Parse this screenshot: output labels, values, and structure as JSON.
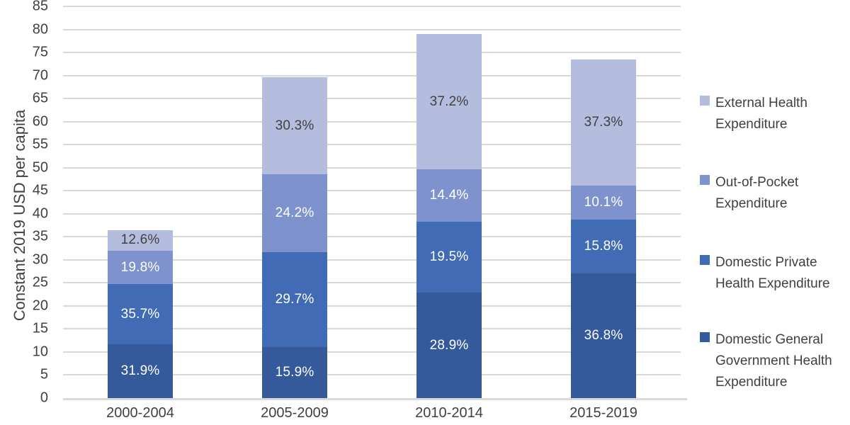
{
  "chart_data": {
    "type": "bar",
    "stacked": true,
    "title": "",
    "ylabel": "Constant 2019 USD per capita",
    "xlabel": "",
    "ylim": [
      0,
      85
    ],
    "ytick_step": 5,
    "grid": true,
    "legend_position": "right",
    "categories": [
      "2000-2004",
      "2005-2009",
      "2010-2014",
      "2015-2019"
    ],
    "totals": [
      36.5,
      69.5,
      79.0,
      73.5
    ],
    "series": [
      {
        "name": "Domestic General Government Health Expenditure",
        "color": "#345a9b",
        "label_color": "#ffffff",
        "values": [
          11.64,
          11.05,
          22.83,
          27.05
        ],
        "labels": [
          "31.9%",
          "15.9%",
          "28.9%",
          "36.8%"
        ]
      },
      {
        "name": "Domestic Private Health Expenditure",
        "color": "#416cb5",
        "label_color": "#ffffff",
        "values": [
          13.03,
          20.64,
          15.41,
          11.61
        ],
        "labels": [
          "35.7%",
          "29.7%",
          "19.5%",
          "15.8%"
        ]
      },
      {
        "name": "Out-of-Pocket Expenditure",
        "color": "#7e93ce",
        "label_color": "#ffffff",
        "values": [
          7.23,
          16.82,
          11.38,
          7.42
        ],
        "labels": [
          "19.8%",
          "24.2%",
          "14.4%",
          "10.1%"
        ]
      },
      {
        "name": "External Health Expenditure",
        "color": "#b4bddd",
        "label_color": "#404040",
        "values": [
          4.6,
          21.06,
          29.39,
          27.42
        ],
        "labels": [
          "12.6%",
          "30.3%",
          "37.2%",
          "37.3%"
        ]
      }
    ],
    "legend_labels_top_to_bottom": [
      "External Health Expenditure",
      "Out-of-Pocket Expenditure",
      "Domestic Private Health Expenditure",
      "Domestic General Government Health Expenditure"
    ],
    "colors": {
      "gridline": "#d9d9d9",
      "axis_line": "#d9d9d9",
      "tick_text": "#404040",
      "legend_text": "#404040"
    }
  }
}
